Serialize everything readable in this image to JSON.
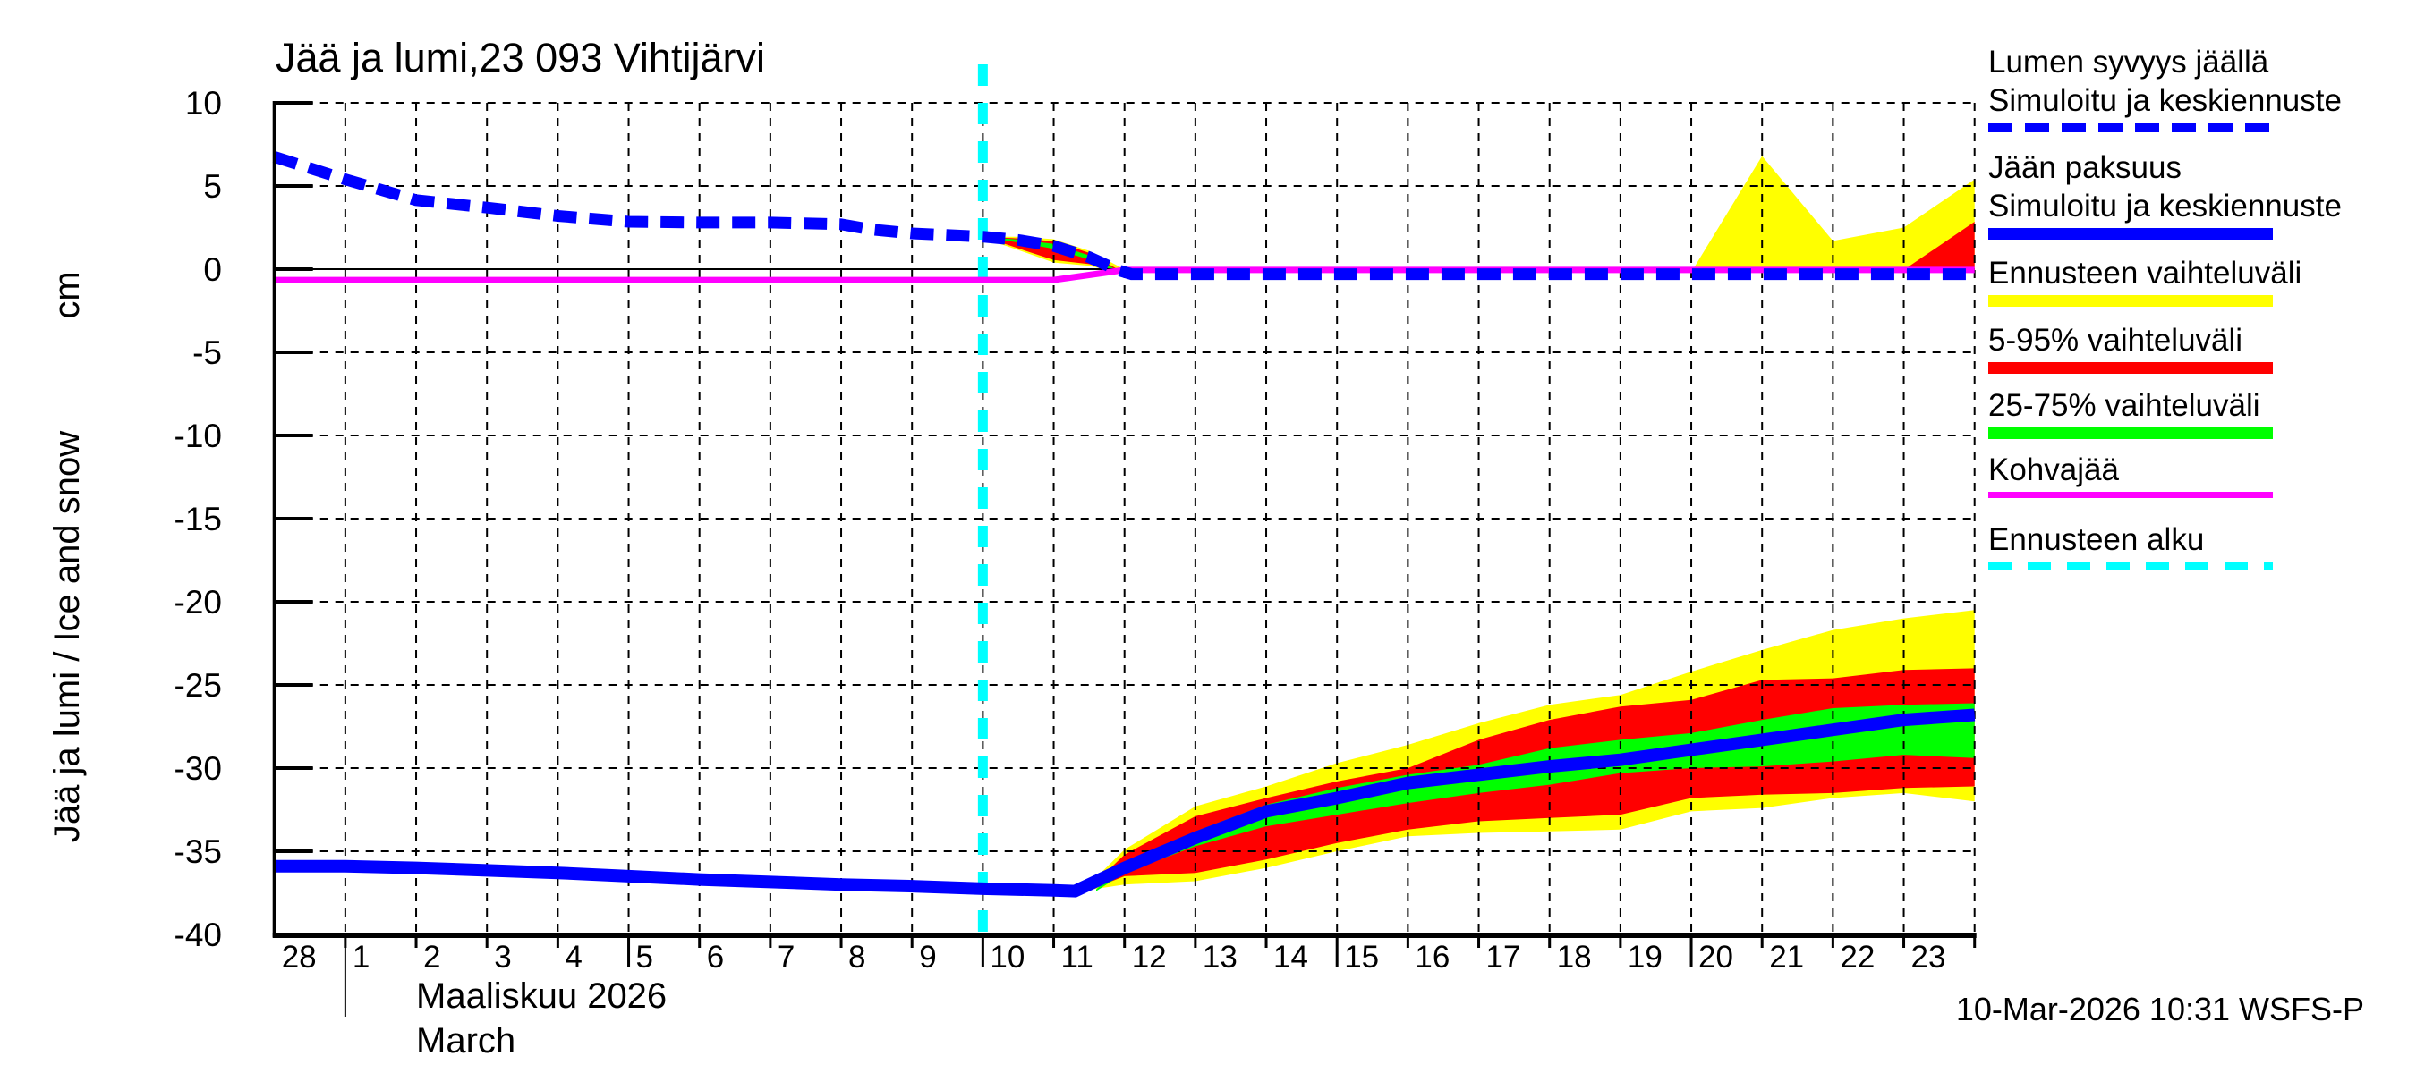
{
  "title": "Jää ja lumi,23 093 Vihtijärvi",
  "colors": {
    "median_line": "#0000ff",
    "range_full": "#ffff00",
    "range_5_95": "#ff0000",
    "range_25_75": "#00ff00",
    "kohvajaa": "#ff00ff",
    "forecast_start": "#00ffff",
    "grid": "#000000",
    "background": "#ffffff"
  },
  "y_axis": {
    "label_main": "Jää ja lumi / Ice and snow",
    "label_unit": "cm",
    "ticks": [
      10,
      5,
      0,
      -5,
      -10,
      -15,
      -20,
      -25,
      -30,
      -35,
      -40
    ],
    "range": [
      -40,
      10
    ]
  },
  "x_axis": {
    "day_labels": [
      "28",
      "1",
      "2",
      "3",
      "4",
      "5",
      "6",
      "7",
      "8",
      "9",
      "10",
      "11",
      "12",
      "13",
      "14",
      "15",
      "16",
      "17",
      "18",
      "19",
      "20",
      "21",
      "22",
      "23"
    ],
    "month_label_fi": "Maaliskuu 2026",
    "month_label_en": "March",
    "long_tick_days": [
      5,
      10,
      15,
      20
    ],
    "month_separator_day": 1
  },
  "footer": {
    "timestamp": "10-Mar-2026 10:31 WSFS-P"
  },
  "legend": {
    "items": [
      {
        "lines": [
          "Lumen syvyys jäällä",
          "Simuloitu ja keskiennuste"
        ],
        "swatch": "dashed",
        "color": "#0000ff",
        "name": "snow-depth-median"
      },
      {
        "lines": [
          "Jään paksuus",
          "Simuloitu ja keskiennuste"
        ],
        "swatch": "solid",
        "color": "#0000ff",
        "name": "ice-thickness-median"
      },
      {
        "lines": [
          "Ennusteen vaihteluväli"
        ],
        "swatch": "solid",
        "color": "#ffff00",
        "name": "forecast-range"
      },
      {
        "lines": [
          "5-95% vaihteluväli"
        ],
        "swatch": "solid",
        "color": "#ff0000",
        "name": "range-5-95"
      },
      {
        "lines": [
          "25-75% vaihteluväli"
        ],
        "swatch": "solid",
        "color": "#00ff00",
        "name": "range-25-75"
      },
      {
        "lines": [
          "Kohvajää"
        ],
        "swatch": "thin",
        "color": "#ff00ff",
        "name": "kohvajaa"
      },
      {
        "lines": [
          "Ennusteen alku"
        ],
        "swatch": "dashed-thin",
        "color": "#00ffff",
        "name": "forecast-start"
      }
    ]
  },
  "chart_data": {
    "type": "line",
    "title": "Jää ja lumi,23 093 Vihtijärvi",
    "ylabel": "Jää ja lumi / Ice and snow (cm)",
    "xlabel": "Maaliskuu 2026 / March (days, starting 28 Feb)",
    "ylim": [
      -40,
      10
    ],
    "x_unit_days_from_feb28": true,
    "xlim": [
      0,
      24
    ],
    "grid": true,
    "forecast_start_t": 10,
    "series": [
      {
        "name": "Lumen syvyys jäällä (simuloitu ja keskiennuste)",
        "style": "dashed",
        "color": "#0000ff",
        "points": [
          [
            0,
            6.75
          ],
          [
            1,
            5.4
          ],
          [
            2,
            4.15
          ],
          [
            3,
            3.7
          ],
          [
            4,
            3.2
          ],
          [
            5,
            2.85
          ],
          [
            6,
            2.8
          ],
          [
            7,
            2.8
          ],
          [
            8,
            2.7
          ],
          [
            8.4,
            2.4
          ],
          [
            9,
            2.15
          ],
          [
            10,
            1.95
          ],
          [
            10.5,
            1.75
          ],
          [
            11,
            1.4
          ],
          [
            11.5,
            0.72
          ],
          [
            11.9,
            -0.05
          ],
          [
            12.1,
            -0.3
          ],
          [
            24,
            -0.3
          ]
        ]
      },
      {
        "name": "Jään paksuus (simuloitu ja keskiennuste)",
        "style": "solid",
        "color": "#0000ff",
        "points": [
          [
            0,
            -35.9
          ],
          [
            1,
            -35.9
          ],
          [
            2,
            -36.0
          ],
          [
            3,
            -36.15
          ],
          [
            4,
            -36.3
          ],
          [
            5,
            -36.5
          ],
          [
            6,
            -36.7
          ],
          [
            7,
            -36.85
          ],
          [
            8,
            -37.0
          ],
          [
            9,
            -37.1
          ],
          [
            10,
            -37.25
          ],
          [
            11,
            -37.35
          ],
          [
            11.3,
            -37.4
          ],
          [
            12,
            -36.0
          ],
          [
            13,
            -34.2
          ],
          [
            14,
            -32.6
          ],
          [
            15,
            -31.8
          ],
          [
            16,
            -30.9
          ],
          [
            17,
            -30.4
          ],
          [
            18,
            -29.9
          ],
          [
            19,
            -29.5
          ],
          [
            20,
            -28.9
          ],
          [
            21,
            -28.3
          ],
          [
            22,
            -27.7
          ],
          [
            23,
            -27.1
          ],
          [
            24,
            -26.8
          ]
        ]
      },
      {
        "name": "Kohvajää",
        "style": "solid-thin",
        "color": "#ff00ff",
        "points": [
          [
            0,
            -0.65
          ],
          [
            11,
            -0.65
          ],
          [
            12,
            -0.05
          ],
          [
            24,
            -0.05
          ]
        ]
      }
    ],
    "ice_bands": {
      "full_range_yellow": {
        "t": [
          11.45,
          12,
          13,
          14,
          15,
          16,
          17,
          18,
          19,
          20,
          21,
          22,
          23,
          24
        ],
        "top": [
          -37.2,
          -34.9,
          -32.3,
          -31.1,
          -29.7,
          -28.6,
          -27.3,
          -26.2,
          -25.6,
          -24.2,
          -22.9,
          -21.7,
          -21.0,
          -20.5
        ],
        "bottom": [
          -37.35,
          -37.0,
          -36.8,
          -36.0,
          -35.0,
          -34.1,
          -33.9,
          -33.8,
          -33.7,
          -32.6,
          -32.4,
          -31.8,
          -31.5,
          -32.0
        ]
      },
      "p5_95_red": {
        "t": [
          11.5,
          12,
          13,
          14,
          15,
          16,
          17,
          18,
          19,
          20,
          21,
          22,
          23,
          24
        ],
        "top": [
          -37.25,
          -35.2,
          -32.9,
          -31.8,
          -30.8,
          -30.0,
          -28.3,
          -27.1,
          -26.3,
          -25.9,
          -24.7,
          -24.6,
          -24.1,
          -24.0
        ],
        "bottom": [
          -37.35,
          -36.5,
          -36.3,
          -35.5,
          -34.5,
          -33.7,
          -33.2,
          -33.0,
          -32.8,
          -31.8,
          -31.6,
          -31.5,
          -31.2,
          -31.1
        ]
      },
      "p25_75_green": {
        "t": [
          11.6,
          12,
          13,
          14,
          15,
          16,
          17,
          18,
          19,
          20,
          21,
          22,
          23,
          24
        ],
        "top": [
          -37.3,
          -35.7,
          -33.8,
          -32.2,
          -31.2,
          -30.4,
          -29.8,
          -28.8,
          -28.3,
          -27.9,
          -27.1,
          -26.4,
          -26.2,
          -26.1
        ],
        "bottom": [
          -37.4,
          -36.3,
          -34.7,
          -33.5,
          -32.8,
          -32.1,
          -31.5,
          -31.0,
          -30.3,
          -30.0,
          -29.9,
          -29.6,
          -29.2,
          -29.4
        ]
      }
    },
    "snow_bands": {
      "funnel_yellow": {
        "t": [
          10.05,
          10.5,
          11,
          11.5,
          11.95
        ],
        "top": [
          1.95,
          1.95,
          1.8,
          1.1,
          0.1
        ],
        "bottom": [
          1.8,
          1.15,
          0.4,
          0.2,
          -0.25
        ]
      },
      "funnel_red": {
        "t": [
          10.1,
          10.5,
          11,
          11.5,
          11.9
        ],
        "top": [
          1.93,
          1.85,
          1.68,
          0.98,
          0.0
        ],
        "bottom": [
          1.82,
          1.25,
          0.55,
          0.3,
          -0.2
        ]
      },
      "funnel_green": {
        "t": [
          10.15,
          10.5,
          11,
          11.5,
          11.88
        ],
        "top": [
          1.9,
          1.78,
          1.52,
          0.83,
          -0.02
        ],
        "bottom": [
          1.85,
          1.6,
          1.22,
          0.58,
          -0.18
        ]
      },
      "late_spike_yellow": [
        [
          20.02,
          -0.05
        ],
        [
          21,
          6.8
        ],
        [
          22,
          1.7
        ],
        [
          23,
          2.5
        ],
        [
          24,
          5.4
        ],
        [
          24,
          -0.05
        ]
      ],
      "late_spike_red": [
        [
          23,
          -0.05
        ],
        [
          24,
          2.85
        ],
        [
          24,
          -0.05
        ]
      ]
    }
  }
}
